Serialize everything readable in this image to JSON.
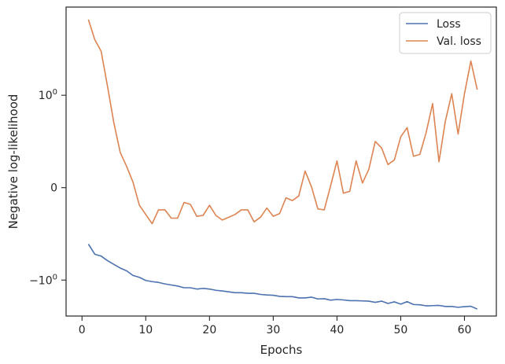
{
  "chart_data": {
    "type": "line",
    "xlabel": "Epochs",
    "ylabel": "Negative log-likelihood",
    "xlim": [
      -2.5,
      65
    ],
    "x_ticks": [
      0,
      10,
      20,
      30,
      40,
      50,
      60
    ],
    "y_scale": "symlog",
    "y_ticks": [
      {
        "value": 1,
        "label": "10^0"
      },
      {
        "value": 0,
        "label": "0"
      },
      {
        "value": -1,
        "label": "−10^0"
      }
    ],
    "grid": false,
    "legend_position": "top-right",
    "series": [
      {
        "name": "Loss",
        "color": "#4c72b0",
        "x": [
          1,
          2,
          3,
          4,
          5,
          6,
          7,
          8,
          9,
          10,
          11,
          12,
          13,
          14,
          15,
          16,
          17,
          18,
          19,
          20,
          21,
          22,
          23,
          24,
          25,
          26,
          27,
          28,
          29,
          30,
          31,
          32,
          33,
          34,
          35,
          36,
          37,
          38,
          39,
          40,
          41,
          42,
          43,
          44,
          45,
          46,
          47,
          48,
          49,
          50,
          51,
          52,
          53,
          54,
          55,
          56,
          57,
          58,
          59,
          60,
          61,
          62
        ],
        "y": [
          -0.61,
          -0.72,
          -0.74,
          -0.79,
          -0.83,
          -0.87,
          -0.9,
          -0.95,
          -0.97,
          -1.01,
          -1.04,
          -1.06,
          -1.1,
          -1.13,
          -1.16,
          -1.21,
          -1.21,
          -1.25,
          -1.23,
          -1.25,
          -1.29,
          -1.31,
          -1.34,
          -1.37,
          -1.37,
          -1.39,
          -1.39,
          -1.43,
          -1.45,
          -1.46,
          -1.5,
          -1.51,
          -1.51,
          -1.56,
          -1.56,
          -1.53,
          -1.6,
          -1.59,
          -1.65,
          -1.62,
          -1.64,
          -1.67,
          -1.67,
          -1.68,
          -1.69,
          -1.74,
          -1.69,
          -1.79,
          -1.72,
          -1.82,
          -1.71,
          -1.84,
          -1.85,
          -1.9,
          -1.89,
          -1.88,
          -1.93,
          -1.93,
          -1.97,
          -1.94,
          -1.92,
          -2.06
        ]
      },
      {
        "name": "Val. loss",
        "color": "#dd8452",
        "x": [
          1,
          2,
          3,
          4,
          5,
          6,
          7,
          8,
          9,
          10,
          11,
          12,
          13,
          14,
          15,
          16,
          17,
          18,
          19,
          20,
          21,
          22,
          23,
          24,
          25,
          26,
          27,
          28,
          29,
          30,
          31,
          32,
          33,
          34,
          35,
          36,
          37,
          38,
          39,
          40,
          41,
          42,
          43,
          44,
          45,
          46,
          47,
          48,
          49,
          50,
          51,
          52,
          53,
          54,
          55,
          56,
          57,
          58,
          59,
          60,
          61,
          62
        ],
        "y": [
          6.6,
          4.0,
          3.0,
          1.25,
          0.7,
          0.38,
          0.23,
          0.06,
          -0.19,
          -0.29,
          -0.39,
          -0.24,
          -0.24,
          -0.33,
          -0.33,
          -0.16,
          -0.18,
          -0.31,
          -0.3,
          -0.19,
          -0.3,
          -0.35,
          -0.32,
          -0.29,
          -0.24,
          -0.24,
          -0.37,
          -0.32,
          -0.22,
          -0.31,
          -0.28,
          -0.11,
          -0.14,
          -0.09,
          0.18,
          0.01,
          -0.23,
          -0.24,
          0.02,
          0.29,
          -0.06,
          -0.04,
          0.29,
          0.05,
          0.2,
          0.5,
          0.43,
          0.25,
          0.3,
          0.55,
          0.65,
          0.34,
          0.36,
          0.6,
          0.91,
          0.28,
          0.72,
          1.04,
          0.58,
          1.04,
          2.35,
          1.15
        ]
      }
    ]
  }
}
